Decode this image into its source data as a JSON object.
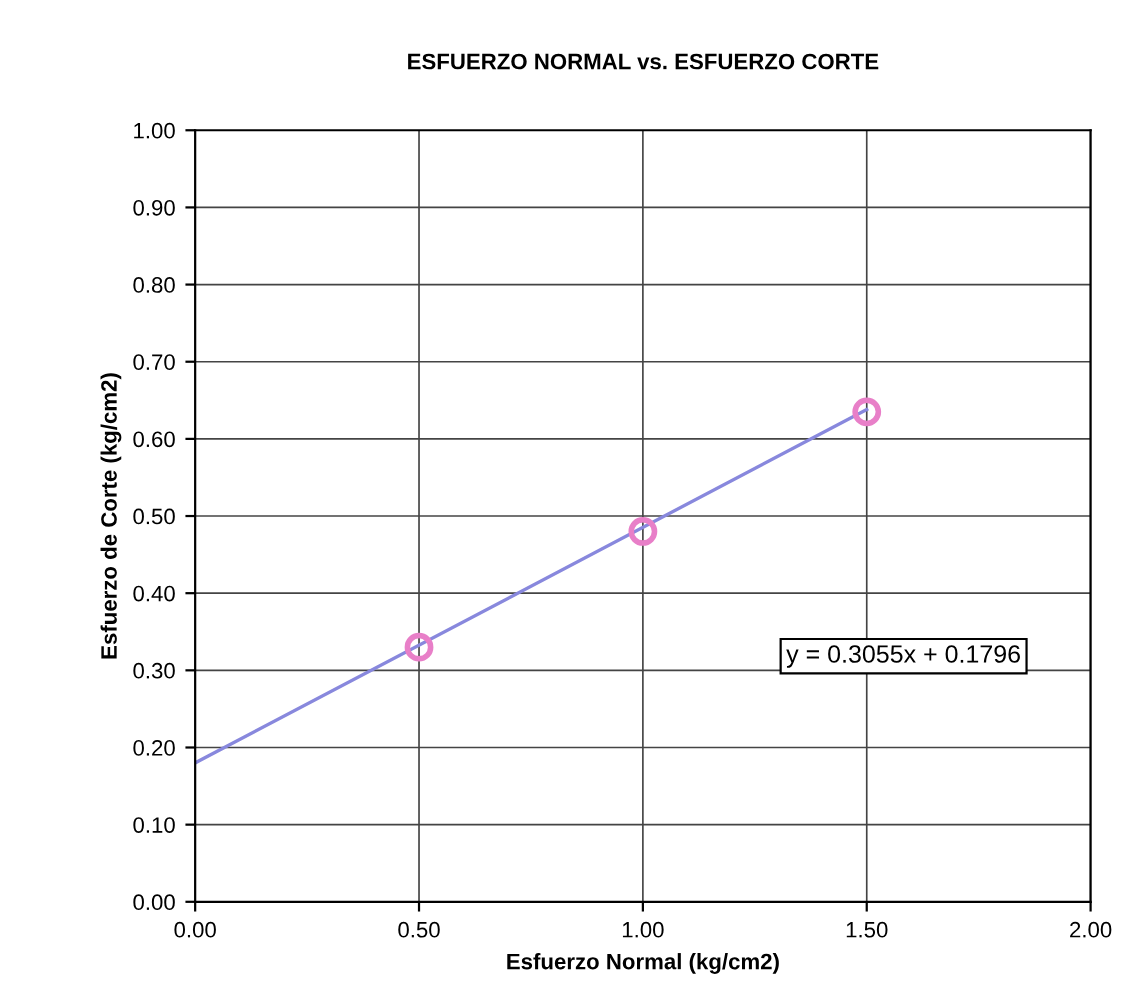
{
  "chart_data": {
    "type": "scatter",
    "title": "ESFUERZO NORMAL vs. ESFUERZO CORTE",
    "xlabel": "Esfuerzo Normal (kg/cm2)",
    "ylabel": "Esfuerzo de Corte (kg/cm2)",
    "series": [
      {
        "color": "#e87fc8",
        "marker": "circle",
        "x": [
          0.5,
          1.0,
          1.5
        ],
        "values": [
          0.33,
          0.48,
          0.635
        ]
      },
      {
        "type": "line",
        "color": "#8888dd",
        "marker": "none",
        "x": [
          0.0,
          1.5
        ],
        "values": [
          0.18,
          0.638
        ]
      }
    ],
    "annotations": [
      "y = 0.3055x + 0.1796"
    ],
    "xlim": [
      0,
      2
    ],
    "xticks": [
      {
        "value": 0,
        "label": "0.00"
      },
      {
        "value": 0.5,
        "label": "0.50"
      },
      {
        "value": 1,
        "label": "1.00"
      },
      {
        "value": 1.5,
        "label": "1.50"
      },
      {
        "value": 2,
        "label": "2.00"
      }
    ],
    "ylim": [
      0,
      1
    ],
    "yticks": [
      {
        "value": 0,
        "label": "0.00"
      },
      {
        "value": 0.1,
        "label": "0.10"
      },
      {
        "value": 0.2,
        "label": "0.20"
      },
      {
        "value": 0.3,
        "label": "0.30"
      },
      {
        "value": 0.4,
        "label": "0.40"
      },
      {
        "value": 0.5,
        "label": "0.50"
      },
      {
        "value": 0.6,
        "label": "0.60"
      },
      {
        "value": 0.7,
        "label": "0.70"
      },
      {
        "value": 0.8,
        "label": "0.80"
      },
      {
        "value": 0.9,
        "label": "0.90"
      },
      {
        "value": 1,
        "label": "1.00"
      }
    ],
    "grid": true,
    "legend": false
  }
}
